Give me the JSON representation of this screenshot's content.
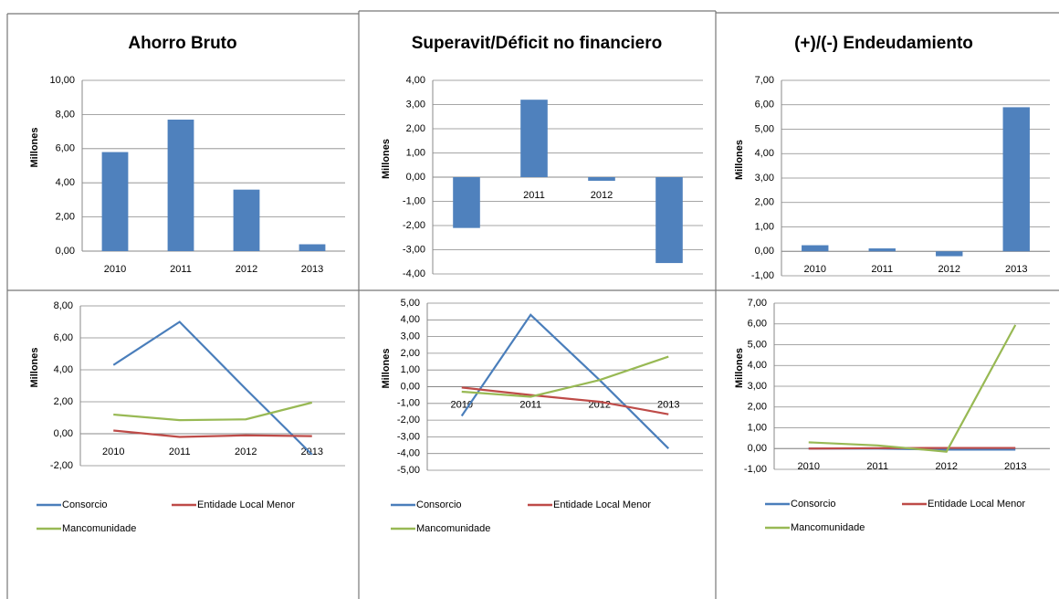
{
  "chart_data": [
    {
      "type": "bar",
      "title": "Ahorro Bruto",
      "y_label": "Millones",
      "categories": [
        "2010",
        "2011",
        "2012",
        "2013"
      ],
      "values": [
        5.8,
        7.7,
        3.6,
        0.4
      ],
      "color": "#4f81bd",
      "ylim": [
        0,
        10
      ],
      "yticks": [
        {
          "value": 0,
          "label": "0,00"
        },
        {
          "value": 2,
          "label": "2,00"
        },
        {
          "value": 4,
          "label": "4,00"
        },
        {
          "value": 6,
          "label": "6,00"
        },
        {
          "value": 8,
          "label": "8,00"
        },
        {
          "value": 10,
          "label": "10,00"
        }
      ],
      "grid": true
    },
    {
      "type": "bar",
      "title": "Superavit/Déficit no financiero",
      "y_label": "Millones",
      "categories": [
        "2010",
        "2011",
        "2012",
        "2013"
      ],
      "values": [
        -2.1,
        3.2,
        -0.15,
        -3.55
      ],
      "color": "#4f81bd",
      "ylim": [
        -4,
        4
      ],
      "yticks": [
        {
          "value": -4,
          "label": "-4,00"
        },
        {
          "value": -3,
          "label": "-3,00"
        },
        {
          "value": -2,
          "label": "-2,00"
        },
        {
          "value": -1,
          "label": "-1,00"
        },
        {
          "value": 0,
          "label": "0,00"
        },
        {
          "value": 1,
          "label": "1,00"
        },
        {
          "value": 2,
          "label": "2,00"
        },
        {
          "value": 3,
          "label": "3,00"
        },
        {
          "value": 4,
          "label": "4,00"
        }
      ],
      "grid": true
    },
    {
      "type": "bar",
      "title": "(+)/(-) Endeudamiento",
      "y_label": "Millones",
      "categories": [
        "2010",
        "2011",
        "2012",
        "2013"
      ],
      "values": [
        0.25,
        0.12,
        -0.2,
        5.9
      ],
      "color": "#4f81bd",
      "ylim": [
        -1,
        7
      ],
      "yticks": [
        {
          "value": -1,
          "label": "-1,00"
        },
        {
          "value": 0,
          "label": "0,00"
        },
        {
          "value": 1,
          "label": "1,00"
        },
        {
          "value": 2,
          "label": "2,00"
        },
        {
          "value": 3,
          "label": "3,00"
        },
        {
          "value": 4,
          "label": "4,00"
        },
        {
          "value": 5,
          "label": "5,00"
        },
        {
          "value": 6,
          "label": "6,00"
        },
        {
          "value": 7,
          "label": "7,00"
        }
      ],
      "grid": true
    },
    {
      "type": "line",
      "y_label": "Millones",
      "categories": [
        "2010",
        "2011",
        "2012",
        "2013"
      ],
      "series": [
        {
          "name": "Consorcio",
          "color": "#4a7ebb",
          "values": [
            4.3,
            7.0,
            2.8,
            -1.3
          ]
        },
        {
          "name": "Entidade Local Menor",
          "color": "#be4b48",
          "values": [
            0.2,
            -0.2,
            -0.1,
            -0.15
          ]
        },
        {
          "name": "Mancomunidade",
          "color": "#98b954",
          "values": [
            1.2,
            0.85,
            0.9,
            1.95
          ]
        }
      ],
      "ylim": [
        -2,
        8
      ],
      "yticks": [
        {
          "value": -2,
          "label": "-2,00"
        },
        {
          "value": 0,
          "label": "0,00"
        },
        {
          "value": 2,
          "label": "2,00"
        },
        {
          "value": 4,
          "label": "4,00"
        },
        {
          "value": 6,
          "label": "6,00"
        },
        {
          "value": 8,
          "label": "8,00"
        }
      ],
      "grid": true
    },
    {
      "type": "line",
      "y_label": "Millones",
      "categories": [
        "2010",
        "2011",
        "2012",
        "2013"
      ],
      "series": [
        {
          "name": "Consorcio",
          "color": "#4a7ebb",
          "values": [
            -1.75,
            4.3,
            0.4,
            -3.7
          ]
        },
        {
          "name": "Entidade Local Menor",
          "color": "#be4b48",
          "values": [
            -0.05,
            -0.5,
            -0.9,
            -1.65
          ]
        },
        {
          "name": "Mancomunidade",
          "color": "#98b954",
          "values": [
            -0.3,
            -0.6,
            0.4,
            1.8
          ]
        }
      ],
      "ylim": [
        -5,
        5
      ],
      "yticks": [
        {
          "value": -5,
          "label": "-5,00"
        },
        {
          "value": -4,
          "label": "-4,00"
        },
        {
          "value": -3,
          "label": "-3,00"
        },
        {
          "value": -2,
          "label": "-2,00"
        },
        {
          "value": -1,
          "label": "-1,00"
        },
        {
          "value": 0,
          "label": "0,00"
        },
        {
          "value": 1,
          "label": "1,00"
        },
        {
          "value": 2,
          "label": "2,00"
        },
        {
          "value": 3,
          "label": "3,00"
        },
        {
          "value": 4,
          "label": "4,00"
        },
        {
          "value": 5,
          "label": "5,00"
        }
      ],
      "grid": true
    },
    {
      "type": "line",
      "y_label": "Millones",
      "categories": [
        "2010",
        "2011",
        "2012",
        "2013"
      ],
      "series": [
        {
          "name": "Consorcio",
          "color": "#4a7ebb",
          "values": [
            0,
            0,
            -0.05,
            -0.05
          ]
        },
        {
          "name": "Entidade Local Menor",
          "color": "#be4b48",
          "values": [
            0,
            0.02,
            0.03,
            0.03
          ]
        },
        {
          "name": "Mancomunidade",
          "color": "#98b954",
          "values": [
            0.3,
            0.15,
            -0.15,
            5.95
          ]
        }
      ],
      "ylim": [
        -1,
        7
      ],
      "yticks": [
        {
          "value": -1,
          "label": "-1,00"
        },
        {
          "value": 0,
          "label": "0,00"
        },
        {
          "value": 1,
          "label": "1,00"
        },
        {
          "value": 2,
          "label": "2,00"
        },
        {
          "value": 3,
          "label": "3,00"
        },
        {
          "value": 4,
          "label": "4,00"
        },
        {
          "value": 5,
          "label": "5,00"
        },
        {
          "value": 6,
          "label": "6,00"
        },
        {
          "value": 7,
          "label": "7,00"
        }
      ],
      "grid": true
    }
  ]
}
